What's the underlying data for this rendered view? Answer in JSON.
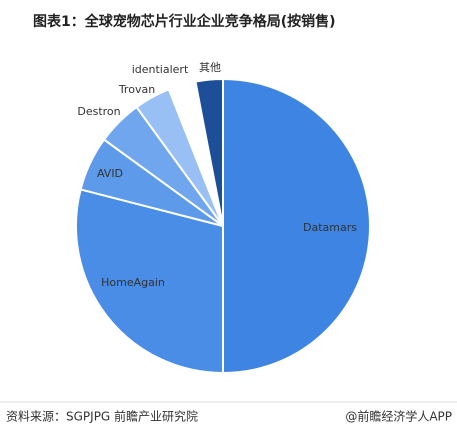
{
  "chart_data": {
    "type": "pie",
    "title": "图表1：全球宠物芯片行业企业竞争格局(按销售)",
    "categories": [
      "Datamars",
      "HomeAgain",
      "AVID",
      "Destron",
      "Trovan",
      "identialert",
      "其他"
    ],
    "values": [
      50,
      29,
      6,
      5,
      4,
      3,
      3
    ],
    "colors": [
      "#3d84e3",
      "#4a8de6",
      "#5d9aea",
      "#6fa6ee",
      "#99c0f4",
      "#ffffff",
      "#1d4f98"
    ],
    "source": "资料来源：SGPJPG 前瞻产业研究院",
    "brand": "@前瞻经济学人APP"
  }
}
